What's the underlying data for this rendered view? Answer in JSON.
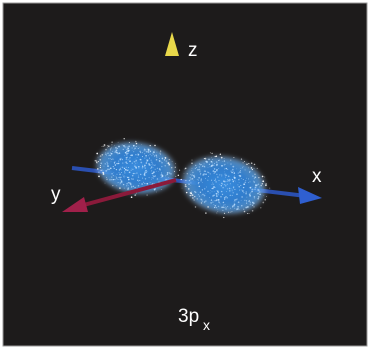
{
  "axes": {
    "z": "z",
    "x": "x",
    "y": "y"
  },
  "orbital": {
    "name": "3p",
    "subscript": "x"
  }
}
